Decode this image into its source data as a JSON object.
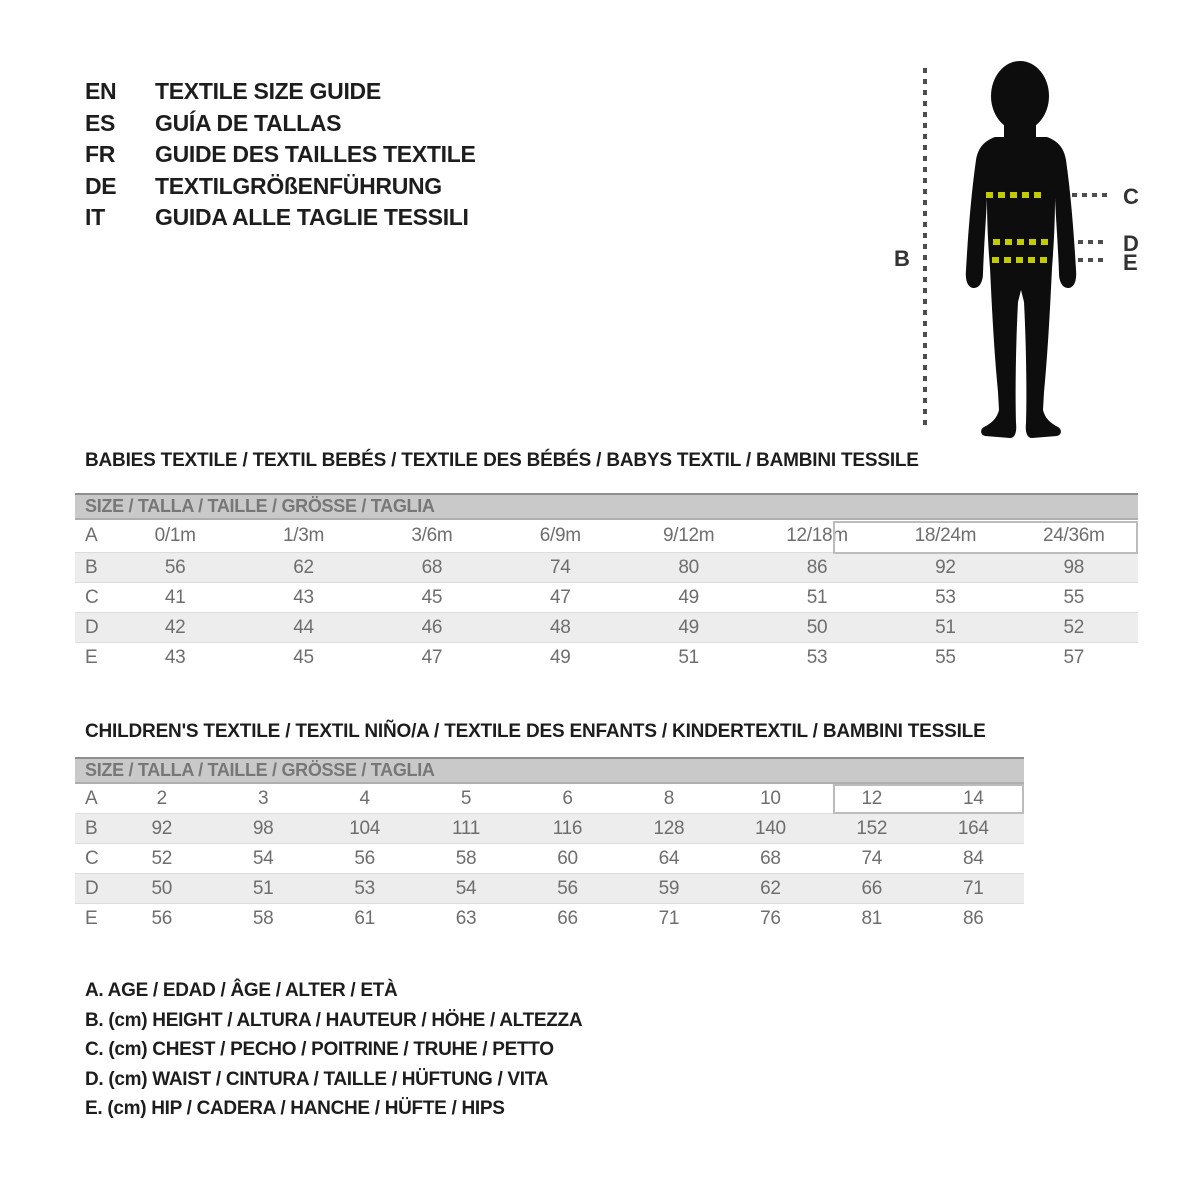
{
  "languages": [
    {
      "code": "EN",
      "label": "TEXTILE SIZE GUIDE"
    },
    {
      "code": "ES",
      "label": "GUÍA DE TALLAS"
    },
    {
      "code": "FR",
      "label": "GUIDE DES TAILLES TEXTILE"
    },
    {
      "code": "DE",
      "label": "TEXTILGRÖßENFÜHRUNG"
    },
    {
      "code": "IT",
      "label": "GUIDA ALLE TAGLIE TESSILI"
    }
  ],
  "figure": {
    "height_label": "B",
    "chest_label": "C",
    "waist_label": "D",
    "hip_label": "E",
    "accent_color": "#c2cc00",
    "dash_color": "#4d4d4d",
    "silhouette_color": "#0d0d0d"
  },
  "babies_table": {
    "heading": "BABIES TEXTILE / TEXTIL BEBÉS / TEXTILE DES BÉBÉS / BABYS TEXTIL / BAMBINI TESSILE",
    "size_header": "SIZE / TALLA / TAILLE / GRÖSSE / TAGLIA",
    "rows": [
      {
        "label": "A",
        "values": [
          "0/1m",
          "1/3m",
          "3/6m",
          "6/9m",
          "9/12m",
          "12/18m",
          "18/24m",
          "24/36m"
        ]
      },
      {
        "label": "B",
        "values": [
          "56",
          "62",
          "68",
          "74",
          "80",
          "86",
          "92",
          "98"
        ]
      },
      {
        "label": "C",
        "values": [
          "41",
          "43",
          "45",
          "47",
          "49",
          "51",
          "53",
          "55"
        ]
      },
      {
        "label": "D",
        "values": [
          "42",
          "44",
          "46",
          "48",
          "49",
          "50",
          "51",
          "52"
        ]
      },
      {
        "label": "E",
        "values": [
          "43",
          "45",
          "47",
          "49",
          "51",
          "53",
          "55",
          "57"
        ]
      }
    ],
    "highlighted_sizes": [
      "18/24m",
      "24/36m"
    ]
  },
  "children_table": {
    "heading": "CHILDREN'S TEXTILE / TEXTIL NIÑO/A / TEXTILE DES ENFANTS / KINDERTEXTIL / BAMBINI TESSILE",
    "size_header": "SIZE / TALLA / TAILLE / GRÖSSE / TAGLIA",
    "rows": [
      {
        "label": "A",
        "values": [
          "2",
          "3",
          "4",
          "5",
          "6",
          "8",
          "10",
          "12",
          "14"
        ]
      },
      {
        "label": "B",
        "values": [
          "92",
          "98",
          "104",
          "111",
          "116",
          "128",
          "140",
          "152",
          "164"
        ]
      },
      {
        "label": "C",
        "values": [
          "52",
          "54",
          "56",
          "58",
          "60",
          "64",
          "68",
          "74",
          "84"
        ]
      },
      {
        "label": "D",
        "values": [
          "50",
          "51",
          "53",
          "54",
          "56",
          "59",
          "62",
          "66",
          "71"
        ]
      },
      {
        "label": "E",
        "values": [
          "56",
          "58",
          "61",
          "63",
          "66",
          "71",
          "76",
          "81",
          "86"
        ]
      }
    ],
    "highlighted_sizes": [
      "12",
      "14"
    ]
  },
  "legend": [
    "A. AGE / EDAD / ÂGE / ALTER / ETÀ",
    "B. (cm) HEIGHT / ALTURA / HAUTEUR / HÖHE / ALTEZZA",
    "C. (cm) CHEST / PECHO / POITRINE / TRUHE / PETTO",
    "D. (cm) WAIST / CINTURA / TAILLE / HÜFTUNG / VITA",
    "E. (cm) HIP / CADERA / HANCHE / HÜFTE / HIPS"
  ]
}
